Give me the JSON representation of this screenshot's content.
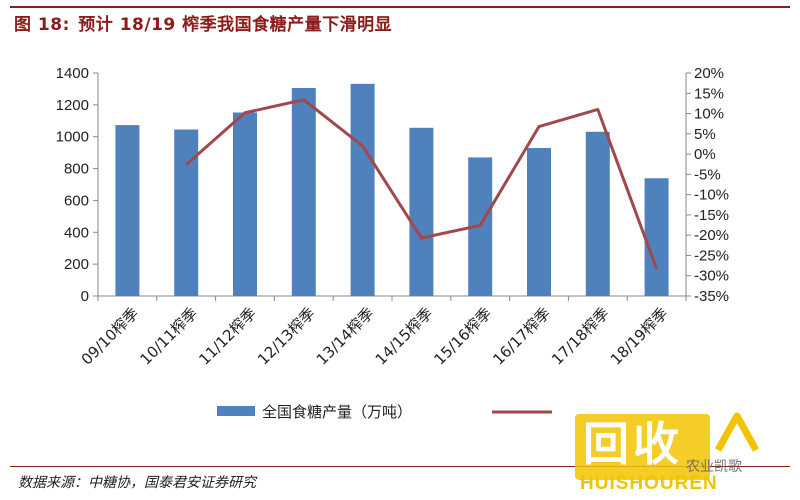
{
  "header": {
    "figure_label": "图 18:",
    "title": "预计 18/19 榨季我国食糖产量下滑明显"
  },
  "source_note": "数据来源：中糖协，国泰君安证券研究",
  "watermark": {
    "big_text": "回收",
    "letters": "HUISHOUREN",
    "small_text": "农业凯歌"
  },
  "colors": {
    "bar": "#4f81bd",
    "line": "#a0484a",
    "title": "#8c1c1c",
    "watermark": "#f2c400"
  },
  "chart_data": {
    "type": "bar",
    "categories": [
      "09/10榨季",
      "10/11榨季",
      "11/12榨季",
      "12/13榨季",
      "13/14榨季",
      "14/15榨季",
      "15/16榨季",
      "16/17榨季",
      "17/18榨季",
      "18/19榨季"
    ],
    "series": [
      {
        "name": "全国食糖产量（万吨）",
        "type": "bar",
        "axis": "left",
        "values": [
          1073,
          1045,
          1152,
          1306,
          1332,
          1056,
          870,
          929,
          1031,
          739
        ]
      },
      {
        "name": "",
        "type": "line",
        "axis": "right",
        "values": [
          null,
          -2.6,
          10.2,
          13.4,
          2.0,
          -20.7,
          -17.6,
          6.8,
          11.0,
          -28.3
        ]
      }
    ],
    "y_left": {
      "min": 0,
      "max": 1400,
      "ticks": [
        0,
        200,
        400,
        600,
        800,
        1000,
        1200,
        1400
      ]
    },
    "y_right": {
      "min": -35,
      "max": 20,
      "ticks": [
        20,
        15,
        10,
        5,
        0,
        -5,
        -10,
        -15,
        -20,
        -25,
        -30,
        -35
      ],
      "tick_labels": [
        "20%",
        "15%",
        "10%",
        "5%",
        "0%",
        "-5%",
        "-10%",
        "-15%",
        "-20%",
        "-25%",
        "-30%",
        "-35%"
      ]
    },
    "legend": {
      "position": "bottom",
      "entries": [
        "全国食糖产量（万吨）",
        ""
      ]
    },
    "grid": false
  }
}
